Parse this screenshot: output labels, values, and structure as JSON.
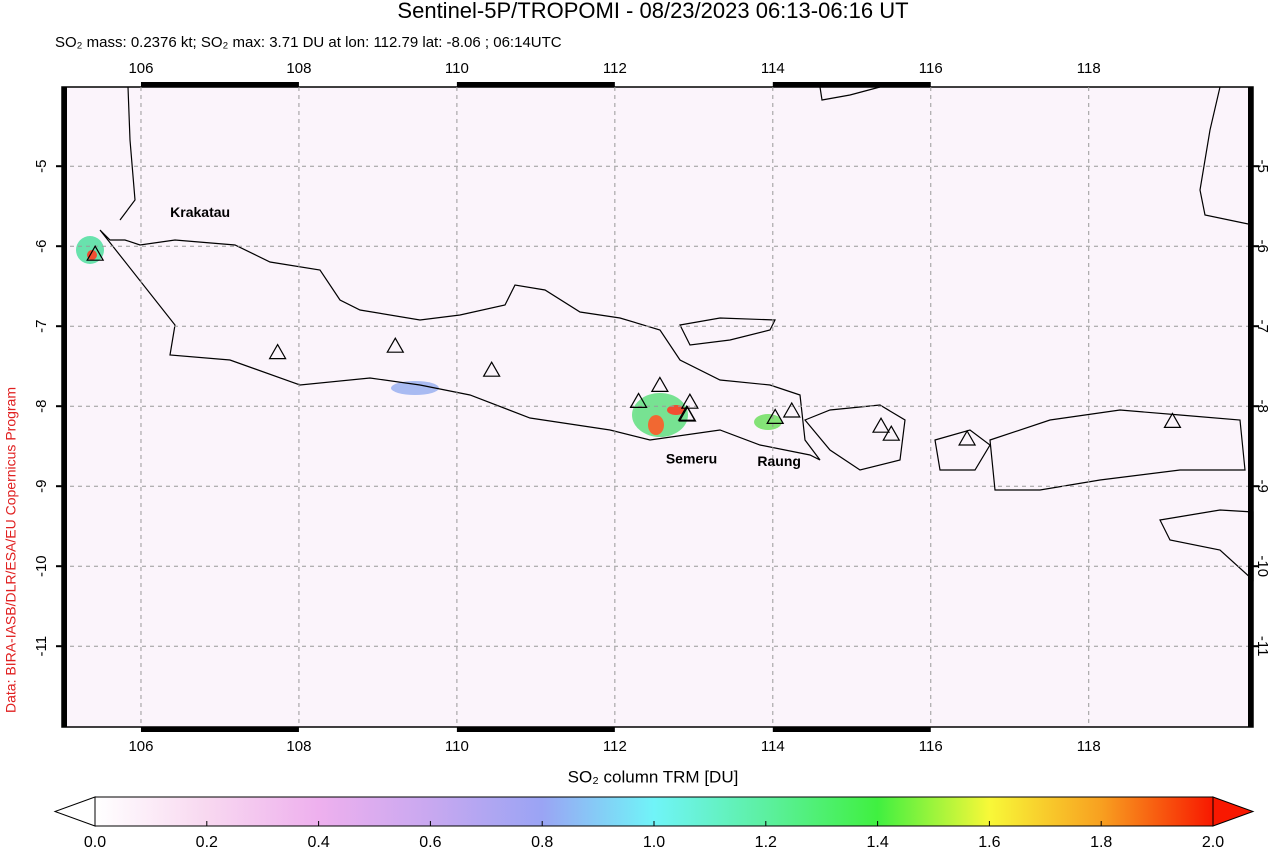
{
  "chart_data": {
    "type": "map",
    "title": "Sentinel-5P/TROPOMI - 08/23/2023 06:13-06:16 UT",
    "subtitle": "SO₂ mass: 0.2376 kt; SO₂ max: 3.71 DU at lon: 112.79 lat: -8.06 ; 06:14UTC",
    "credit": "Data: BIRA-IASB/DLR/ESA/EU Copernicus Program",
    "xlim": [
      105,
      120.08
    ],
    "ylim": [
      -12.01,
      -4.01
    ],
    "xticks": [
      106,
      108,
      110,
      112,
      114,
      116,
      118
    ],
    "yticks": [
      -5,
      -6,
      -7,
      -8,
      -9,
      -10,
      -11
    ],
    "grid": true,
    "volcanoes": [
      {
        "lon": 105.42,
        "lat": -6.1,
        "label": "Krakatau"
      },
      {
        "lon": 107.73,
        "lat": -7.33
      },
      {
        "lon": 109.22,
        "lat": -7.25
      },
      {
        "lon": 110.44,
        "lat": -7.55
      },
      {
        "lon": 112.3,
        "lat": -7.94
      },
      {
        "lon": 112.57,
        "lat": -7.74
      },
      {
        "lon": 112.95,
        "lat": -7.95
      },
      {
        "lon": 112.91,
        "lat": -8.1
      },
      {
        "lon": 112.92,
        "lat": -8.11,
        "label": "Semeru"
      },
      {
        "lon": 114.03,
        "lat": -8.14,
        "label": "Raung"
      },
      {
        "lon": 114.24,
        "lat": -8.06
      },
      {
        "lon": 115.37,
        "lat": -8.25
      },
      {
        "lon": 115.5,
        "lat": -8.35
      },
      {
        "lon": 116.46,
        "lat": -8.41
      },
      {
        "lon": 119.06,
        "lat": -8.19
      }
    ],
    "colorbar": {
      "label": "SO₂ column TRM [DU]",
      "lim": [
        0,
        2
      ],
      "ticks": [
        {
          "value": 0,
          "label": "0.0"
        },
        0.2,
        0.4,
        0.6,
        0.8,
        {
          "value": 1,
          "label": "1.0"
        },
        1.2,
        1.4,
        1.6,
        1.8,
        {
          "value": 2,
          "label": "2.0"
        }
      ],
      "colors": [
        "#ffffff",
        "#f8d8f0",
        "#eeb0ee",
        "#c8a8f0",
        "#9aa4f4",
        "#70f4f8",
        "#5cf0a0",
        "#40f040",
        "#f8f838",
        "#f8a020",
        "#f81800"
      ]
    }
  }
}
